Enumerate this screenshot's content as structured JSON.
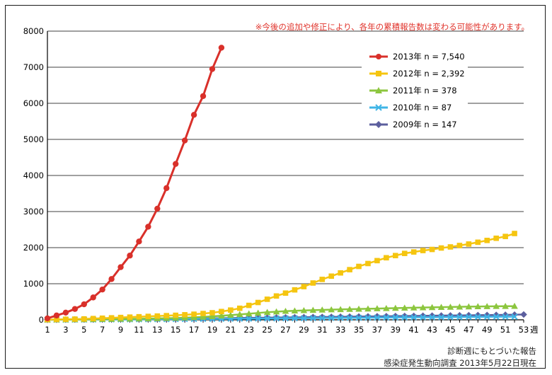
{
  "note": "※今後の追加や修正により、各年の累積報告数は変わる可能性があります。",
  "source_line1": "診断週にもとづいた報告",
  "source_line2": "感染症発生動向調査 2013年5月22日現在",
  "colors": {
    "s2013": "#d9302a",
    "s2012": "#f5c510",
    "s2011": "#8cc63e",
    "s2010": "#3fb5e6",
    "s2009": "#5c5f9e",
    "grid": "#808080",
    "axis": "#000000"
  },
  "chart_data": {
    "type": "line",
    "title": "",
    "xlabel": "",
    "ylabel": "",
    "x_unit": "週",
    "ylim": [
      0,
      8000
    ],
    "xlim": [
      1,
      53
    ],
    "y_ticks": [
      "0",
      "1000",
      "2000",
      "3000",
      "4000",
      "5000",
      "6000",
      "7000",
      "8000"
    ],
    "x_ticks": [
      "1",
      "3",
      "5",
      "7",
      "9",
      "11",
      "13",
      "15",
      "17",
      "19",
      "21",
      "23",
      "25",
      "27",
      "29",
      "31",
      "33",
      "35",
      "37",
      "39",
      "41",
      "43",
      "45",
      "47",
      "49",
      "51",
      "53"
    ],
    "legend_position": "top-right",
    "series": [
      {
        "name": "2013年 n = 7,540",
        "color_key": "s2013",
        "marker": "circle",
        "x": [
          1,
          2,
          3,
          4,
          5,
          6,
          7,
          8,
          9,
          10,
          11,
          12,
          13,
          14,
          15,
          16,
          17,
          18,
          19,
          20
        ],
        "values": [
          40,
          120,
          200,
          300,
          430,
          620,
          840,
          1130,
          1460,
          1780,
          2170,
          2580,
          3080,
          3650,
          4320,
          4970,
          5680,
          6200,
          6950,
          7540
        ]
      },
      {
        "name": "2012年 n = 2,392",
        "color_key": "s2012",
        "marker": "square",
        "x": [
          1,
          2,
          3,
          4,
          5,
          6,
          7,
          8,
          9,
          10,
          11,
          12,
          13,
          14,
          15,
          16,
          17,
          18,
          19,
          20,
          21,
          22,
          23,
          24,
          25,
          26,
          27,
          28,
          29,
          30,
          31,
          32,
          33,
          34,
          35,
          36,
          37,
          38,
          39,
          40,
          41,
          42,
          43,
          44,
          45,
          46,
          47,
          48,
          49,
          50,
          51,
          52
        ],
        "values": [
          5,
          10,
          15,
          20,
          25,
          35,
          45,
          55,
          65,
          75,
          85,
          95,
          105,
          115,
          125,
          140,
          155,
          175,
          195,
          230,
          270,
          320,
          400,
          480,
          570,
          660,
          740,
          830,
          920,
          1020,
          1120,
          1210,
          1300,
          1390,
          1480,
          1560,
          1640,
          1720,
          1780,
          1840,
          1880,
          1920,
          1950,
          1990,
          2020,
          2060,
          2100,
          2150,
          2200,
          2260,
          2310,
          2392
        ]
      },
      {
        "name": "2011年 n = 378",
        "color_key": "s2011",
        "marker": "triangle",
        "x": [
          1,
          2,
          3,
          4,
          5,
          6,
          7,
          8,
          9,
          10,
          11,
          12,
          13,
          14,
          15,
          16,
          17,
          18,
          19,
          20,
          21,
          22,
          23,
          24,
          25,
          26,
          27,
          28,
          29,
          30,
          31,
          32,
          33,
          34,
          35,
          36,
          37,
          38,
          39,
          40,
          41,
          42,
          43,
          44,
          45,
          46,
          47,
          48,
          49,
          50,
          51,
          52
        ],
        "values": [
          2,
          4,
          6,
          8,
          10,
          13,
          16,
          19,
          22,
          26,
          30,
          34,
          38,
          44,
          50,
          58,
          68,
          80,
          95,
          112,
          130,
          150,
          170,
          190,
          210,
          225,
          240,
          250,
          260,
          268,
          275,
          282,
          288,
          294,
          300,
          306,
          312,
          318,
          324,
          330,
          335,
          340,
          345,
          350,
          355,
          360,
          364,
          368,
          372,
          375,
          377,
          378
        ]
      },
      {
        "name": "2010年 n = 87",
        "color_key": "s2010",
        "marker": "x",
        "x": [
          1,
          2,
          3,
          4,
          5,
          6,
          7,
          8,
          9,
          10,
          11,
          12,
          13,
          14,
          15,
          16,
          17,
          18,
          19,
          20,
          21,
          22,
          23,
          24,
          25,
          26,
          27,
          28,
          29,
          30,
          31,
          32,
          33,
          34,
          35,
          36,
          37,
          38,
          39,
          40,
          41,
          42,
          43,
          44,
          45,
          46,
          47,
          48,
          49,
          50,
          51,
          52
        ],
        "values": [
          1,
          2,
          3,
          5,
          6,
          7,
          9,
          10,
          11,
          13,
          14,
          15,
          17,
          18,
          20,
          21,
          22,
          24,
          25,
          27,
          29,
          31,
          33,
          35,
          37,
          39,
          41,
          43,
          45,
          47,
          49,
          51,
          53,
          55,
          57,
          59,
          61,
          63,
          65,
          67,
          69,
          71,
          72,
          74,
          76,
          78,
          80,
          82,
          83,
          85,
          86,
          87
        ]
      },
      {
        "name": "2009年 n = 147",
        "color_key": "s2009",
        "marker": "diamond",
        "x": [
          1,
          2,
          3,
          4,
          5,
          6,
          7,
          8,
          9,
          10,
          11,
          12,
          13,
          14,
          15,
          16,
          17,
          18,
          19,
          20,
          21,
          22,
          23,
          24,
          25,
          26,
          27,
          28,
          29,
          30,
          31,
          32,
          33,
          34,
          35,
          36,
          37,
          38,
          39,
          40,
          41,
          42,
          43,
          44,
          45,
          46,
          47,
          48,
          49,
          50,
          51,
          52,
          53
        ],
        "values": [
          2,
          4,
          6,
          8,
          10,
          12,
          14,
          16,
          18,
          20,
          22,
          24,
          26,
          28,
          30,
          33,
          36,
          39,
          42,
          45,
          48,
          51,
          54,
          57,
          60,
          63,
          66,
          69,
          72,
          75,
          78,
          81,
          84,
          87,
          90,
          93,
          96,
          99,
          102,
          105,
          108,
          111,
          114,
          117,
          120,
          123,
          126,
          129,
          132,
          135,
          138,
          142,
          147
        ]
      }
    ]
  }
}
